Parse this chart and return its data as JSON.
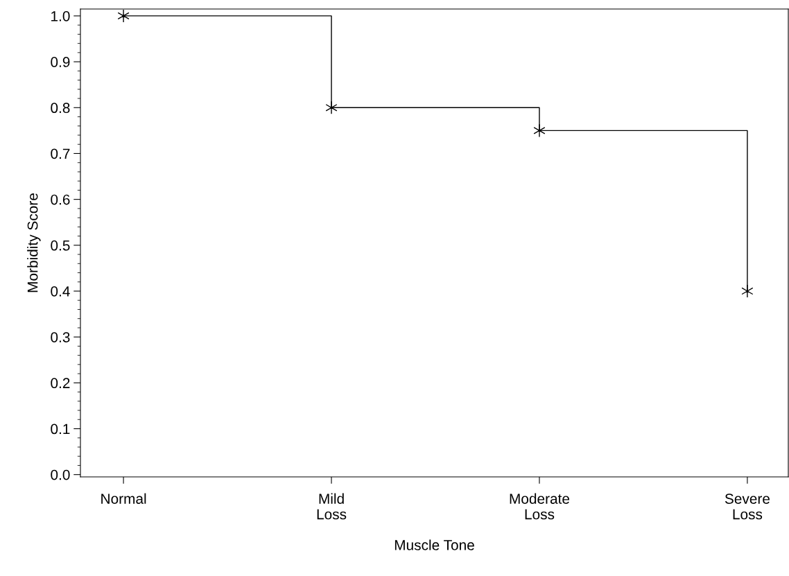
{
  "chart_data": {
    "type": "step",
    "xlabel": "Muscle Tone",
    "ylabel": "Morbidity Score",
    "categories": [
      "Normal",
      "Mild\nLoss",
      "Moderate\nLoss",
      "Severe\nLoss"
    ],
    "series": [
      {
        "color": "#000000",
        "values": [
          1.0,
          0.8,
          0.75,
          0.4
        ]
      }
    ],
    "ylim": [
      -0.005,
      1.015
    ],
    "yticks": [
      {
        "value": 0,
        "label": "0.0"
      },
      0.1,
      0.2,
      0.3,
      0.4,
      0.5,
      0.6,
      0.7,
      0.8,
      0.9,
      {
        "value": 1,
        "label": "1.0"
      }
    ],
    "marker": "cross",
    "line_style": "solid",
    "grid": false,
    "legend": false
  }
}
